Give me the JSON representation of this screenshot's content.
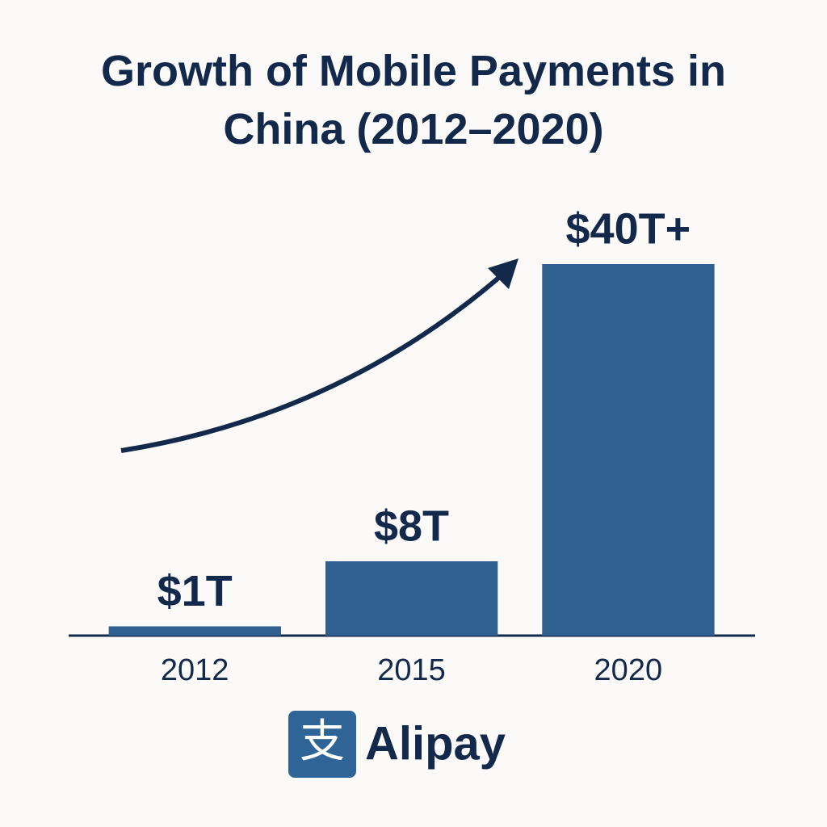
{
  "chart_data": {
    "type": "bar",
    "title": "Growth of Mobile Payments in China (2012–2020)",
    "categories": [
      "2012",
      "2015",
      "2020"
    ],
    "values": [
      1,
      8,
      40
    ],
    "value_labels": [
      "$1T",
      "$8T",
      "$40T+"
    ],
    "color": "#2f6090"
  },
  "footer": {
    "logo_text": "支",
    "brand": "Alipay"
  }
}
